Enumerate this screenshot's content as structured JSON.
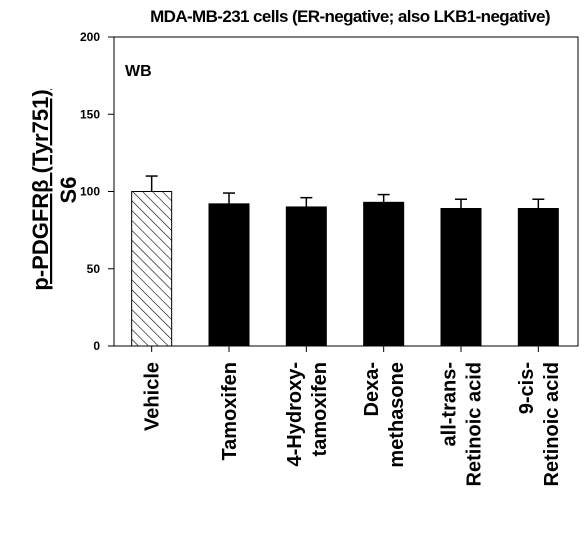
{
  "chart_data": {
    "type": "bar",
    "title": "MDA-MB-231 cells (ER-negative; also LKB1-negative)",
    "annotation": "WB",
    "ylabel_line1": "p-PDGFRβ (Tyr751)",
    "ylabel_line2": "S6",
    "ylim": [
      0,
      200
    ],
    "yticks": [
      "0",
      "50",
      "100",
      "150",
      "200"
    ],
    "categories": [
      [
        "Vehicle"
      ],
      [
        "Tamoxifen"
      ],
      [
        "4-Hydroxy-",
        "tamoxifen"
      ],
      [
        "Dexa-",
        "methasone"
      ],
      [
        "all-trans-",
        "Retinoic acid"
      ],
      [
        "9-cis-",
        "Retinoic acid"
      ]
    ],
    "values": [
      100,
      92,
      90,
      93,
      89,
      89
    ],
    "errors": [
      10,
      7,
      6,
      5,
      6,
      6
    ],
    "bar_styles": [
      "hatched",
      "solid",
      "solid",
      "solid",
      "solid",
      "solid"
    ],
    "grid": false,
    "colors": {
      "solid": "#000000",
      "hatched_line": "#000000",
      "hatched_fill": "#ffffff"
    }
  }
}
